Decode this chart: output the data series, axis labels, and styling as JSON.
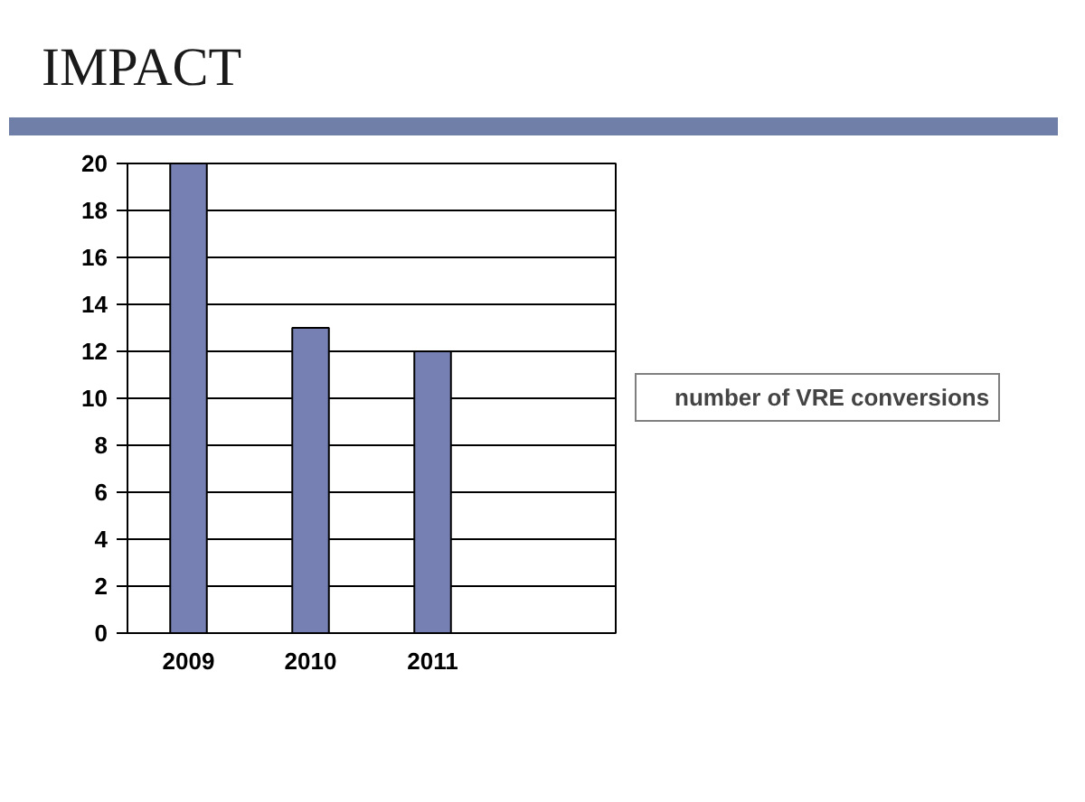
{
  "chart_data": {
    "type": "bar",
    "title": "IMPACT",
    "categories": [
      "2009",
      "2010",
      "2011",
      null
    ],
    "series": [
      {
        "name": "number of VRE conversions",
        "color": "#7680b3",
        "values": [
          20,
          13,
          12,
          null
        ]
      }
    ],
    "ylim": [
      0,
      20
    ],
    "yticks": [
      0,
      2,
      4,
      6,
      8,
      10,
      12,
      14,
      16,
      18,
      20
    ],
    "grid": "y",
    "legend": "right"
  }
}
